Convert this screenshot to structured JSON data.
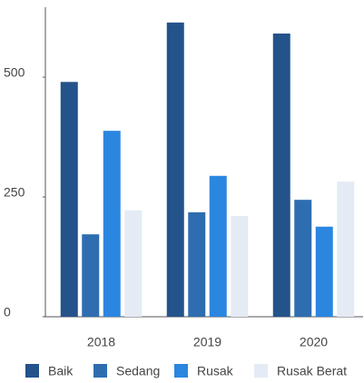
{
  "chart_data": {
    "type": "bar",
    "categories": [
      "2018",
      "2019",
      "2020"
    ],
    "series": [
      {
        "name": "Baik",
        "color": "#24528a",
        "values": [
          490,
          614,
          591
        ]
      },
      {
        "name": "Sedang",
        "color": "#2e6db0",
        "values": [
          172,
          218,
          244
        ]
      },
      {
        "name": "Rusak",
        "color": "#2b86e0",
        "values": [
          388,
          294,
          188
        ]
      },
      {
        "name": "Rusak Berat",
        "color": "#e4ebf5",
        "values": [
          222,
          210,
          282
        ]
      }
    ],
    "ylim": [
      0,
      640
    ],
    "yticks": [
      0,
      250,
      500
    ],
    "grid": false,
    "legend": "bottom"
  }
}
